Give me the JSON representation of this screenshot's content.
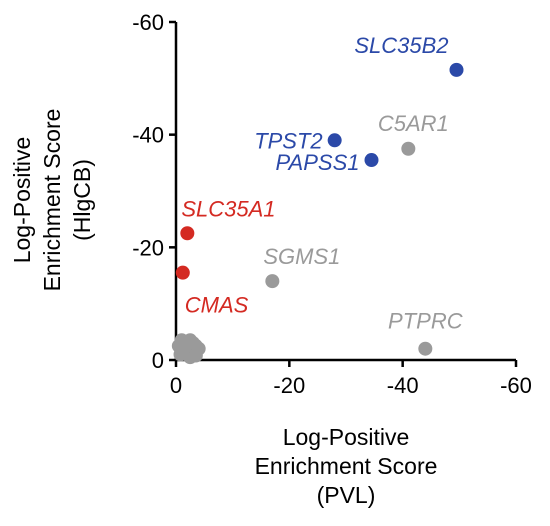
{
  "chart_data": {
    "type": "scatter",
    "title": "",
    "xlabel": [
      "Log-Positive",
      "Enrichment Score",
      "(PVL)"
    ],
    "ylabel": [
      "Log-Positive",
      "Enrichment Score",
      "(HlgCB)"
    ],
    "xlim": [
      0,
      -60
    ],
    "ylim": [
      0,
      -60
    ],
    "x_ticks": [
      0,
      -20,
      -40,
      -60
    ],
    "y_ticks": [
      0,
      -20,
      -40,
      -60
    ],
    "x_tick_labels": [
      "0",
      "-20",
      "-40",
      "-60"
    ],
    "y_tick_labels": [
      "0",
      "-20",
      "-40",
      "-60"
    ],
    "grid": false,
    "colors": {
      "blue": "#2b49a8",
      "red": "#d42a22",
      "gray": "#9a9a9a"
    },
    "labeled_points": [
      {
        "label": "SLC35B2",
        "x": -49.5,
        "y": -51.5,
        "color": "blue"
      },
      {
        "label": "TPST2",
        "x": -28,
        "y": -39,
        "color": "blue"
      },
      {
        "label": "PAPSS1",
        "x": -34.5,
        "y": -35.5,
        "color": "blue"
      },
      {
        "label": "C5AR1",
        "x": -41,
        "y": -37.5,
        "color": "gray"
      },
      {
        "label": "SLC35A1",
        "x": -2,
        "y": -22.5,
        "color": "red"
      },
      {
        "label": "CMAS",
        "x": -1.2,
        "y": -15.5,
        "color": "red"
      },
      {
        "label": "SGMS1",
        "x": -17,
        "y": -14,
        "color": "gray"
      },
      {
        "label": "PTPRC",
        "x": -44,
        "y": -2,
        "color": "gray"
      }
    ],
    "cluster_points": [
      {
        "x": -0.5,
        "y": -2.5
      },
      {
        "x": -1,
        "y": -1.5
      },
      {
        "x": -1.5,
        "y": -3
      },
      {
        "x": -2,
        "y": -2
      },
      {
        "x": -2.5,
        "y": -3.5
      },
      {
        "x": -3,
        "y": -1.5
      },
      {
        "x": -3.5,
        "y": -2.5
      },
      {
        "x": -4,
        "y": -2
      },
      {
        "x": -1,
        "y": -3.5
      },
      {
        "x": -2,
        "y": -1
      },
      {
        "x": -3,
        "y": -3
      },
      {
        "x": -2.5,
        "y": -0.5
      },
      {
        "x": -3.5,
        "y": -0.8
      },
      {
        "x": -1.5,
        "y": -2.2
      },
      {
        "x": -0.8,
        "y": -1
      }
    ]
  }
}
